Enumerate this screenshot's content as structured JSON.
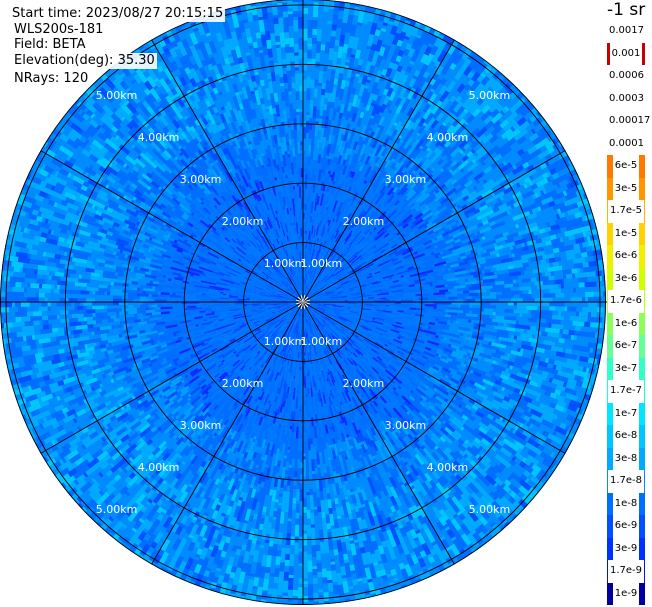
{
  "info": {
    "start_time": "Start time: 2023/08/27 20:15:15",
    "site": "WLS200s-181",
    "field": "Field: BETA",
    "elevation_label": "Elevation(deg):",
    "elevation_value": "35.30",
    "nrays": "NRays: 120"
  },
  "colorbar": {
    "units": "-1 sr",
    "entries": [
      {
        "label": "0.0017",
        "color": "#b40000"
      },
      {
        "label": "0.001",
        "color": "#c80000"
      },
      {
        "label": "0.0006",
        "color": "#dc0000"
      },
      {
        "label": "0.0003",
        "color": "#f00000"
      },
      {
        "label": "0.00017",
        "color": "#ffffff"
      },
      {
        "label": "0.0001",
        "color": "#ff5a00"
      },
      {
        "label": "6e-5",
        "color": "#ff7800"
      },
      {
        "label": "3e-5",
        "color": "#ff9600"
      },
      {
        "label": "1.7e-5",
        "color": "#ffb400"
      },
      {
        "label": "1e-5",
        "color": "#ffd200"
      },
      {
        "label": "6e-6",
        "color": "#f0f000"
      },
      {
        "label": "3e-6",
        "color": "#d2ff00"
      },
      {
        "label": "1.7e-6",
        "color": "#b4ff1e"
      },
      {
        "label": "1e-6",
        "color": "#8cff5a"
      },
      {
        "label": "6e-7",
        "color": "#64ff96"
      },
      {
        "label": "3e-7",
        "color": "#32ffc8"
      },
      {
        "label": "1.7e-7",
        "color": "#14ffe6"
      },
      {
        "label": "1e-7",
        "color": "#00e6ff"
      },
      {
        "label": "6e-8",
        "color": "#00c8ff"
      },
      {
        "label": "3e-8",
        "color": "#00aaff"
      },
      {
        "label": "1.7e-8",
        "color": "#008cff"
      },
      {
        "label": "1e-8",
        "color": "#006eff"
      },
      {
        "label": "6e-9",
        "color": "#0050ff"
      },
      {
        "label": "3e-9",
        "color": "#0032ff"
      },
      {
        "label": "1.7e-9",
        "color": "#0014dc"
      },
      {
        "label": "1e-9",
        "color": "#0000a0"
      }
    ]
  },
  "chart_data": {
    "type": "heatmap",
    "subtype": "polar-ppi",
    "field": "BETA",
    "elevation_deg": 35.3,
    "nrays": 120,
    "range_rings_km": [
      1.0,
      2.0,
      3.0,
      4.0,
      5.0
    ],
    "ring_labels": [
      "1.00km",
      "2.00km",
      "3.00km",
      "4.00km",
      "5.00km"
    ],
    "spokes_deg": [
      0,
      30,
      60,
      90,
      120,
      150,
      180,
      210,
      240,
      270,
      300,
      330
    ],
    "max_range_km": 5.1,
    "dominant_value_range": [
      "1e-9",
      "1e-7"
    ],
    "dominant_colors": [
      "#0050ff",
      "#006eff",
      "#008cff",
      "#00aaff",
      "#00c8ff",
      "#0032ff"
    ]
  }
}
